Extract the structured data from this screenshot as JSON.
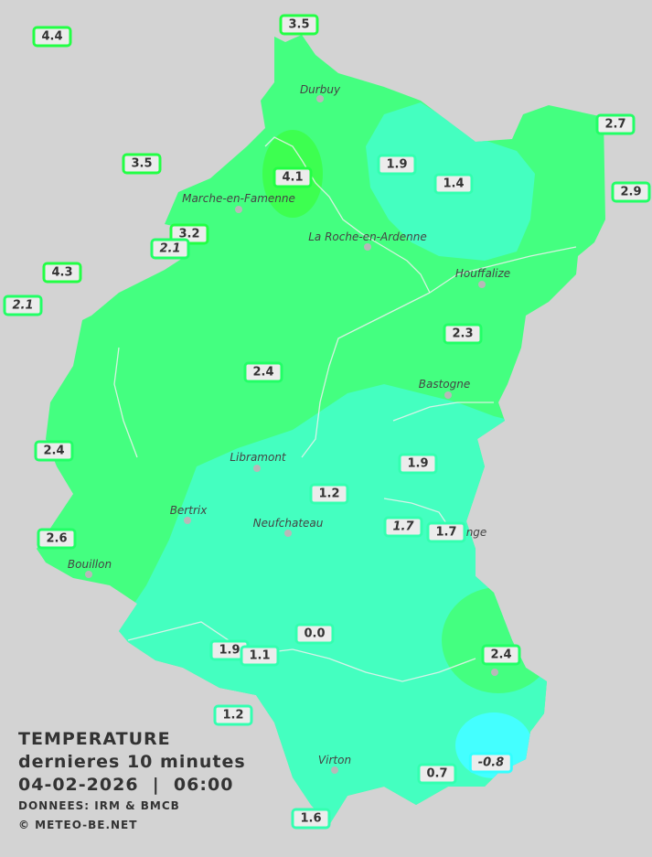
{
  "colors": {
    "background": "#d3d3d3",
    "zone_2": "#44ff80",
    "zone_1": "#44ffc0",
    "zone_4": "#3dff50",
    "zone_neg": "#44ffff"
  },
  "legend": {
    "title": "TEMPERATURE",
    "subtitle": "dernieres 10 minutes",
    "datetime": "04-02-2026  |  06:00",
    "source": "DONNEES: IRM & BMCB",
    "copyright": "© METEO-BE.NET"
  },
  "stations": [
    {
      "value": "4.4",
      "italic": false,
      "color": "#22ff44"
    },
    {
      "value": "3.5",
      "italic": false,
      "color": "#22ff44"
    },
    {
      "value": "3.5",
      "italic": false,
      "color": "#22ff44"
    },
    {
      "value": "4.1",
      "italic": false,
      "color": "#22ff44"
    },
    {
      "value": "1.9",
      "italic": false,
      "color": "#33ffb0"
    },
    {
      "value": "1.4",
      "italic": false,
      "color": "#33ffb0"
    },
    {
      "value": "2.7",
      "italic": false,
      "color": "#22ff66"
    },
    {
      "value": "2.9",
      "italic": false,
      "color": "#22ff66"
    },
    {
      "value": "3.2",
      "italic": false,
      "color": "#22ff44"
    },
    {
      "value": "2.1",
      "italic": true,
      "color": "#22ff66"
    },
    {
      "value": "4.3",
      "italic": false,
      "color": "#22ff44"
    },
    {
      "value": "2.1",
      "italic": true,
      "color": "#22ff66"
    },
    {
      "value": "2.3",
      "italic": false,
      "color": "#22ff66"
    },
    {
      "value": "2.4",
      "italic": false,
      "color": "#22ff66"
    },
    {
      "value": "2.4",
      "italic": false,
      "color": "#22ff66"
    },
    {
      "value": "1.9",
      "italic": false,
      "color": "#33ffb0"
    },
    {
      "value": "1.2",
      "italic": false,
      "color": "#33ffb0"
    },
    {
      "value": "1.7",
      "italic": true,
      "color": "#33ffb0"
    },
    {
      "value": "1.7",
      "italic": false,
      "color": "#33ffb0"
    },
    {
      "value": "2.6",
      "italic": false,
      "color": "#22ff66"
    },
    {
      "value": "0.0",
      "italic": false,
      "color": "#33ffb0"
    },
    {
      "value": "1.9",
      "italic": false,
      "color": "#33ffb0"
    },
    {
      "value": "1.1",
      "italic": false,
      "color": "#33ffb0"
    },
    {
      "value": "2.4",
      "italic": false,
      "color": "#22ff66"
    },
    {
      "value": "1.2",
      "italic": false,
      "color": "#33ffb0"
    },
    {
      "value": "0.7",
      "italic": false,
      "color": "#33ffb0"
    },
    {
      "value": "-0.8",
      "italic": true,
      "color": "#33ffff"
    },
    {
      "value": "1.6",
      "italic": false,
      "color": "#33ffb0"
    }
  ],
  "cities": [
    "Durbuy",
    "Marche-en-Famenne",
    "La Roche-en-Ardenne",
    "Houffalize",
    "Bastogne",
    "Libramont",
    "Bertrix",
    "Neufchateau",
    "Bouillon",
    "nge",
    "Virton"
  ]
}
